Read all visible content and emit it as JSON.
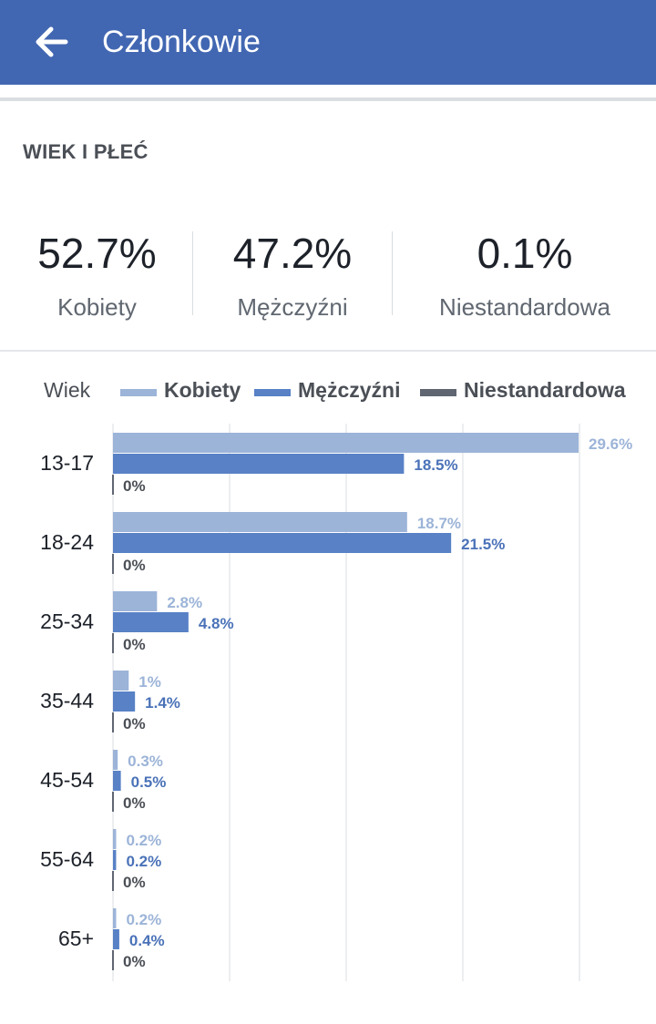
{
  "header": {
    "title": "Członkowie",
    "back_icon": "arrow-left-icon"
  },
  "section": {
    "title": "WIEK I PŁEĆ"
  },
  "stats": [
    {
      "value": "52.7%",
      "label": "Kobiety"
    },
    {
      "value": "47.2%",
      "label": "Mężczyźni"
    },
    {
      "value": "0.1%",
      "label": "Niestandardowa"
    }
  ],
  "colors": {
    "header": "#4267b2",
    "women": "#9cb4d8",
    "men": "#5881c6",
    "custom": "#5f6672"
  },
  "chart_data": {
    "type": "bar",
    "orientation": "horizontal",
    "axis_label": "Wiek",
    "categories": [
      "13-17",
      "18-24",
      "25-34",
      "35-44",
      "45-54",
      "55-64",
      "65+"
    ],
    "series": [
      {
        "name": "Kobiety",
        "values": [
          29.6,
          18.7,
          2.8,
          1,
          0.3,
          0.2,
          0.2
        ],
        "labels": [
          "29.6%",
          "18.7%",
          "2.8%",
          "1%",
          "0.3%",
          "0.2%",
          "0.2%"
        ]
      },
      {
        "name": "Mężczyźni",
        "values": [
          18.5,
          21.5,
          4.8,
          1.4,
          0.5,
          0.2,
          0.4
        ],
        "labels": [
          "18.5%",
          "21.5%",
          "4.8%",
          "1.4%",
          "0.5%",
          "0.2%",
          "0.4%"
        ]
      },
      {
        "name": "Niestandardowa",
        "values": [
          0,
          0,
          0,
          0,
          0,
          0,
          0
        ],
        "labels": [
          "0%",
          "0%",
          "0%",
          "0%",
          "0%",
          "0%",
          "0%"
        ]
      }
    ],
    "xlim": [
      0,
      29.6
    ],
    "grid": true,
    "legend_position": "top"
  }
}
